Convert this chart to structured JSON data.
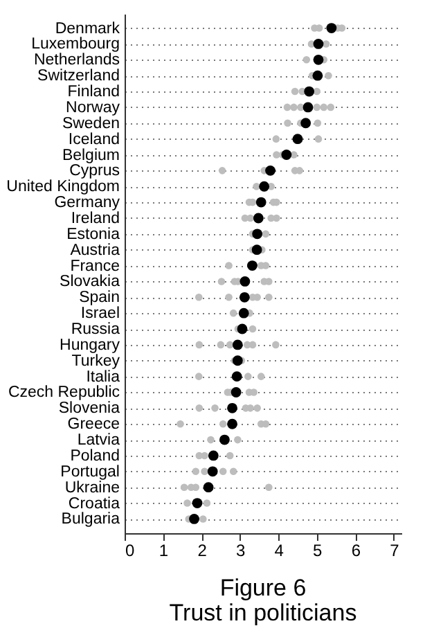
{
  "chart_data": {
    "type": "scatter",
    "orientation": "horizontal",
    "title": "Figure 6",
    "subtitle": "Trust in politicians",
    "categories": [
      "Denmark",
      "Luxembourg",
      "Netherlands",
      "Switzerland",
      "Finland",
      "Norway",
      "Sweden",
      "Iceland",
      "Belgium",
      "Cyprus",
      "United Kingdom",
      "Germany",
      "Ireland",
      "Estonia",
      "Austria",
      "France",
      "Slovakia",
      "Spain",
      "Israel",
      "Russia",
      "Hungary",
      "Turkey",
      "Italia",
      "Czech Republic",
      "Slovenia",
      "Greece",
      "Latvia",
      "Poland",
      "Portugal",
      "Ukraine",
      "Croatia",
      "Bulgaria"
    ],
    "series": [
      {
        "color": "#bdbdbd",
        "x": [
          "Denmark",
          "Denmark",
          "Denmark",
          "Denmark",
          "Luxembourg",
          "Luxembourg",
          "Netherlands",
          "Netherlands",
          "Switzerland",
          "Switzerland",
          "Finland",
          "Finland",
          "Finland",
          "Norway",
          "Norway",
          "Norway",
          "Norway",
          "Norway",
          "Norway",
          "Sweden",
          "Sweden",
          "Sweden",
          "Iceland",
          "Iceland",
          "Belgium",
          "Belgium",
          "Belgium",
          "Cyprus",
          "Cyprus",
          "Cyprus",
          "Cyprus",
          "United Kingdom",
          "United Kingdom",
          "Germany",
          "Germany",
          "Germany",
          "Germany",
          "Ireland",
          "Ireland",
          "Ireland",
          "Ireland",
          "Estonia",
          "Estonia",
          "Austria",
          "Austria",
          "France",
          "France",
          "France",
          "Slovakia",
          "Slovakia",
          "Slovakia",
          "Slovakia",
          "Slovakia",
          "Spain",
          "Spain",
          "Spain",
          "Spain",
          "Spain",
          "Israel",
          "Israel",
          "Russia",
          "Russia",
          "Hungary",
          "Hungary",
          "Hungary",
          "Hungary",
          "Hungary",
          "Hungary",
          "Turkey",
          "Turkey",
          "Italia",
          "Italia",
          "Italia",
          "Czech Republic",
          "Czech Republic",
          "Czech Republic",
          "Czech Republic",
          "Slovenia",
          "Slovenia",
          "Slovenia",
          "Slovenia",
          "Slovenia",
          "Greece",
          "Greece",
          "Greece",
          "Greece",
          "Latvia",
          "Latvia",
          "Poland",
          "Poland",
          "Poland",
          "Portugal",
          "Portugal",
          "Portugal",
          "Portugal",
          "Ukraine",
          "Ukraine",
          "Ukraine",
          "Ukraine",
          "Croatia",
          "Croatia",
          "Bulgaria",
          "Bulgaria"
        ],
        "values": [
          4.94,
          5.06,
          5.54,
          5.65,
          4.86,
          5.24,
          4.73,
          5.18,
          4.88,
          5.3,
          4.43,
          4.62,
          5.0,
          4.23,
          4.4,
          4.58,
          5.0,
          5.18,
          5.36,
          4.24,
          4.58,
          5.02,
          3.94,
          5.04,
          3.95,
          4.11,
          4.4,
          2.54,
          3.63,
          4.43,
          4.55,
          3.43,
          3.81,
          3.24,
          3.33,
          3.87,
          3.95,
          3.13,
          3.27,
          3.81,
          3.95,
          3.33,
          3.67,
          3.33,
          3.57,
          2.71,
          3.55,
          3.67,
          2.52,
          2.86,
          2.95,
          3.63,
          3.75,
          1.93,
          2.71,
          3.33,
          3.45,
          3.75,
          2.83,
          3.25,
          2.95,
          3.33,
          1.94,
          2.5,
          2.74,
          3.19,
          3.33,
          3.93,
          2.86,
          3.04,
          1.93,
          3.21,
          3.55,
          2.68,
          2.76,
          3.24,
          3.36,
          1.94,
          2.35,
          3.15,
          3.27,
          3.45,
          1.45,
          2.56,
          3.55,
          3.67,
          2.24,
          2.94,
          1.94,
          2.08,
          2.74,
          1.85,
          2.08,
          2.56,
          2.83,
          1.55,
          1.73,
          1.85,
          3.75,
          1.63,
          2.14,
          1.67,
          2.04
        ]
      },
      {
        "color": "#000000",
        "values": [
          5.38,
          5.04,
          5.04,
          5.02,
          4.8,
          4.77,
          4.71,
          4.5,
          4.21,
          3.79,
          3.63,
          3.55,
          3.48,
          3.45,
          3.44,
          3.32,
          3.13,
          3.12,
          3.1,
          3.06,
          2.94,
          2.94,
          2.92,
          2.9,
          2.8,
          2.8,
          2.6,
          2.31,
          2.29,
          2.18,
          1.89,
          1.81
        ]
      }
    ],
    "xlim": [
      0,
      7.2
    ],
    "xticks": [
      0,
      1,
      2,
      3,
      4,
      5,
      6,
      7
    ],
    "grid": "y",
    "marker": "circle"
  }
}
